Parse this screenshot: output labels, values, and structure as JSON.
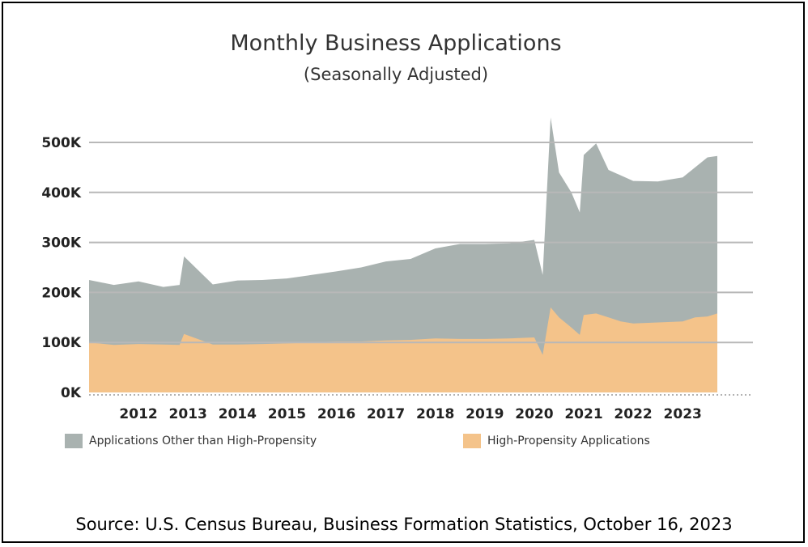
{
  "chart_data": {
    "type": "area",
    "title": "Monthly Business Applications",
    "subtitle": "(Seasonally Adjusted)",
    "xlabel": "",
    "ylabel": "",
    "ylim": [
      0,
      500000
    ],
    "yticks": [
      0,
      100000,
      200000,
      300000,
      400000,
      500000
    ],
    "ytick_labels": [
      "0K",
      "100K",
      "200K",
      "300K",
      "400K",
      "500K"
    ],
    "xticks": [
      2012,
      2013,
      2014,
      2015,
      2016,
      2017,
      2018,
      2019,
      2020,
      2021,
      2022,
      2023
    ],
    "xtick_labels": [
      "2012",
      "2013",
      "2014",
      "2015",
      "2016",
      "2017",
      "2018",
      "2019",
      "2020",
      "2021",
      "2022",
      "2023"
    ],
    "stacked": true,
    "grid": "horizontal",
    "legend_position": "bottom",
    "x": [
      2011.0,
      2011.5,
      2012.0,
      2012.5,
      2012.83,
      2012.92,
      2013.5,
      2014.0,
      2014.5,
      2015.0,
      2015.5,
      2016.0,
      2016.5,
      2017.0,
      2017.5,
      2018.0,
      2018.5,
      2019.0,
      2019.5,
      2020.0,
      2020.17,
      2020.33,
      2020.5,
      2020.75,
      2020.92,
      2021.0,
      2021.25,
      2021.5,
      2021.75,
      2022.0,
      2022.5,
      2023.0,
      2023.25,
      2023.5,
      2023.7
    ],
    "series": [
      {
        "name": "High-Propensity Applications",
        "color": "#f4c38a",
        "values": [
          100000,
          95000,
          97000,
          96000,
          95000,
          117000,
          96000,
          96000,
          97000,
          98000,
          100000,
          102000,
          102000,
          104000,
          105000,
          108000,
          107000,
          107000,
          108000,
          110000,
          75000,
          170000,
          150000,
          130000,
          115000,
          155000,
          158000,
          150000,
          142000,
          138000,
          140000,
          142000,
          150000,
          152000,
          158000
        ]
      },
      {
        "name": "Applications Other than High-Propensity",
        "color": "#a9b2b0",
        "values": [
          125000,
          120000,
          125000,
          115000,
          120000,
          155000,
          120000,
          128000,
          128000,
          130000,
          135000,
          140000,
          148000,
          158000,
          162000,
          180000,
          190000,
          190000,
          190000,
          195000,
          160000,
          380000,
          290000,
          270000,
          245000,
          320000,
          340000,
          295000,
          292000,
          285000,
          282000,
          288000,
          300000,
          318000,
          315000
        ]
      }
    ]
  },
  "legend": {
    "other_label": "Applications Other than High-Propensity",
    "high_label": "High-Propensity Applications"
  },
  "footer": {
    "source": "Source: U.S. Census Bureau, Business Formation Statistics, October 16, 2023"
  }
}
